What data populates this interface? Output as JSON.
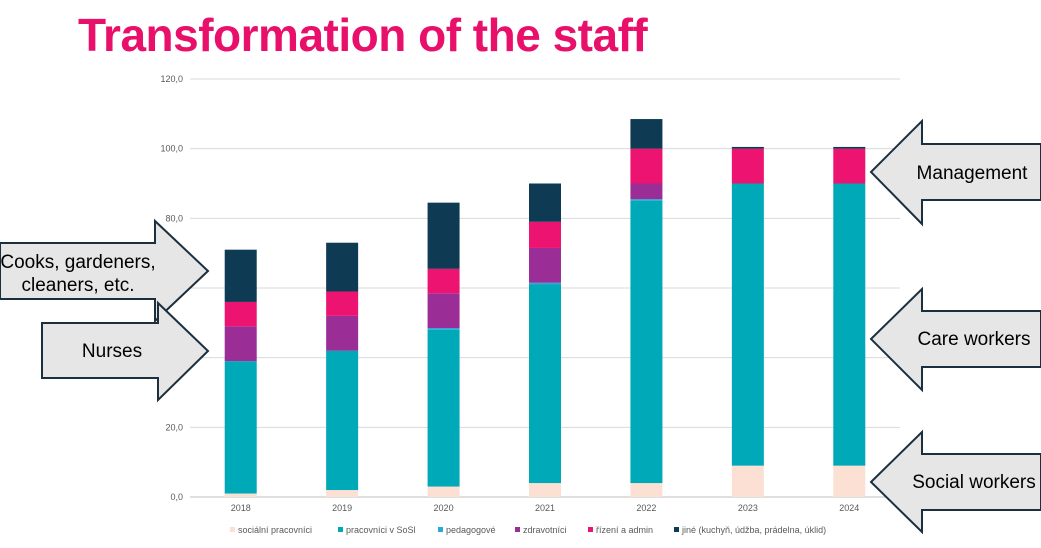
{
  "title": "Transformation of the staff",
  "chart_data": {
    "type": "bar",
    "stacked": true,
    "categories": [
      "2018",
      "2019",
      "2020",
      "2021",
      "2022",
      "2023",
      "2024"
    ],
    "ylim": [
      0,
      120
    ],
    "yticks": [
      "0,0",
      "20,0",
      "40,0",
      "60,0",
      "80,0",
      "100,0",
      "120,0"
    ],
    "ytick_values": [
      0,
      20,
      40,
      60,
      80,
      100,
      120
    ],
    "grid": true,
    "legend_position": "bottom",
    "series": [
      {
        "name": "sociální pracovníci",
        "color": "#fbe0d3",
        "values": [
          1,
          2,
          3,
          4,
          4,
          9,
          9
        ]
      },
      {
        "name": "pracovníci v SoSl",
        "color": "#00a9b7",
        "values": [
          38,
          40,
          45,
          57,
          81,
          81,
          81
        ]
      },
      {
        "name": "pedagogové",
        "color": "#2aa8d8",
        "values": [
          0,
          0,
          0.5,
          0.5,
          0.5,
          0,
          0
        ]
      },
      {
        "name": "zdravotníci",
        "color": "#9b2d96",
        "values": [
          10,
          10,
          10,
          10,
          4.5,
          0,
          0
        ]
      },
      {
        "name": "řízení a admin",
        "color": "#ed1370",
        "values": [
          7,
          7,
          7,
          7.5,
          10,
          10,
          10
        ]
      },
      {
        "name": "jiné (kuchyň, údžba, prádelna, úklid)",
        "color": "#0f3a53",
        "values": [
          15,
          14,
          19,
          11,
          8.5,
          0.5,
          0.5
        ]
      }
    ]
  },
  "callouts": {
    "cooks": [
      "Cooks, gardeners,",
      "cleaners, etc."
    ],
    "nurses": "Nurses",
    "management": "Management",
    "care": "Care workers",
    "social": "Social workers"
  }
}
